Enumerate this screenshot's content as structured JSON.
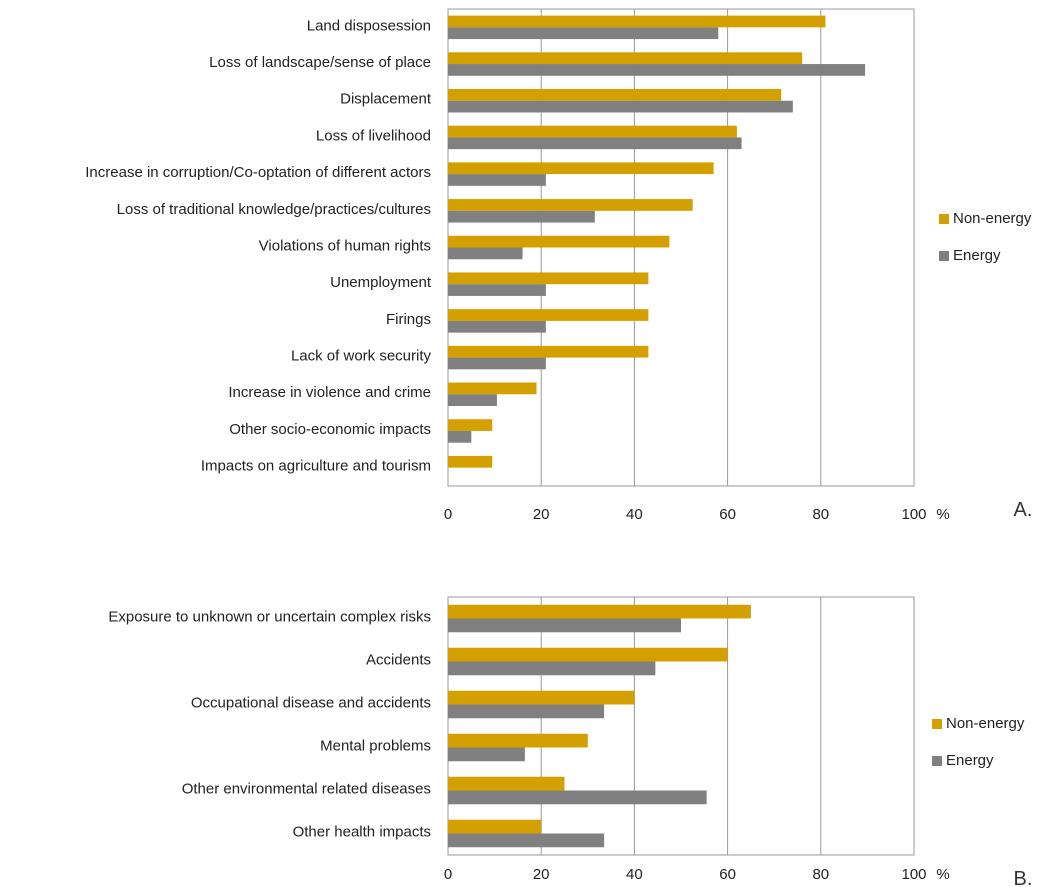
{
  "colors": {
    "non_energy": "#D4A000",
    "energy": "#808080",
    "grid": "#999999",
    "text": "#222222"
  },
  "chart_data": [
    {
      "type": "bar",
      "orientation": "horizontal",
      "panel": "A.",
      "unit": "%",
      "xlim": [
        0,
        100
      ],
      "xticks": [
        0,
        20,
        40,
        60,
        80,
        100
      ],
      "grid": true,
      "legend_position": "right",
      "categories": [
        "Land disposession",
        "Loss of landscape/sense of place",
        "Displacement",
        "Loss of livelihood",
        "Increase in corruption/Co-optation of different actors",
        "Loss of traditional knowledge/practices/cultures",
        "Violations of human rights",
        "Unemployment",
        "Firings",
        "Lack of work security",
        "Increase in violence and crime",
        "Other socio-economic impacts",
        "Impacts on agriculture and tourism"
      ],
      "series": [
        {
          "name": "Non-energy",
          "values": [
            81,
            76,
            71.5,
            62,
            57,
            52.5,
            47.5,
            43,
            43,
            43,
            19,
            9.5,
            9.5
          ]
        },
        {
          "name": "Energy",
          "values": [
            58,
            89.5,
            74,
            63,
            21,
            31.5,
            16,
            21,
            21,
            21,
            10.5,
            5,
            0
          ]
        }
      ]
    },
    {
      "type": "bar",
      "orientation": "horizontal",
      "panel": "B.",
      "unit": "%",
      "xlim": [
        0,
        100
      ],
      "xticks": [
        0,
        20,
        40,
        60,
        80,
        100
      ],
      "grid": true,
      "legend_position": "right",
      "categories": [
        "Exposure to unknown or uncertain complex risks",
        "Accidents",
        "Occupational disease and accidents",
        "Mental problems",
        "Other environmental related diseases",
        "Other health impacts"
      ],
      "series": [
        {
          "name": "Non-energy",
          "values": [
            65,
            60,
            40,
            30,
            25,
            20
          ]
        },
        {
          "name": "Energy",
          "values": [
            50,
            44.5,
            33.5,
            16.5,
            55.5,
            33.5
          ]
        }
      ]
    }
  ]
}
